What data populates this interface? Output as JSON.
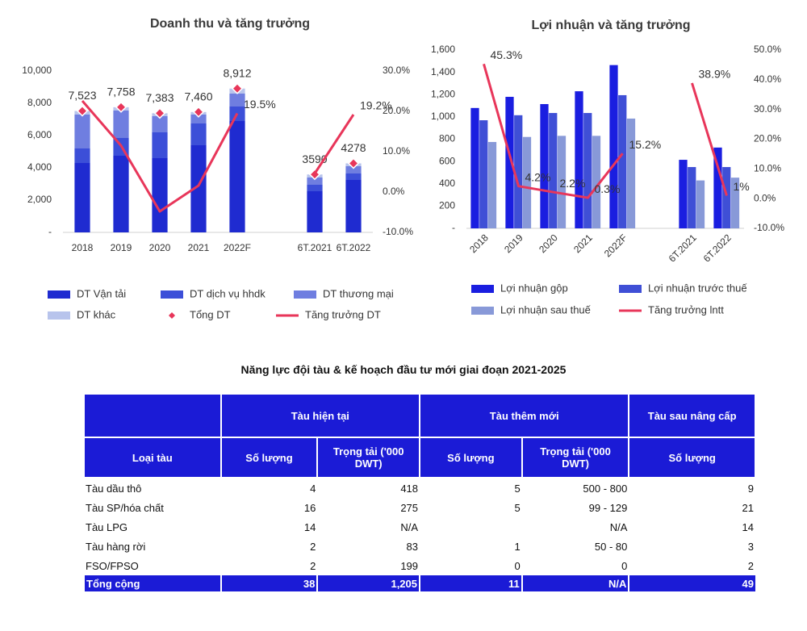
{
  "chart_data": [
    {
      "type": "bar",
      "stacked": true,
      "title": "Doanh thu và tăng trưởng",
      "categories": [
        "2018",
        "2019",
        "2020",
        "2021",
        "2022F",
        null,
        "6T.2021",
        "6T.2022"
      ],
      "ylim": [
        0,
        10000
      ],
      "yticks": [
        {
          "value": 0,
          "label": "-"
        },
        {
          "value": 2000,
          "label": "2,000"
        },
        {
          "value": 4000,
          "label": "4,000"
        },
        {
          "value": 6000,
          "label": "6,000"
        },
        {
          "value": 8000,
          "label": "8,000"
        },
        {
          "value": 10000,
          "label": "10,000"
        }
      ],
      "y2lim": [
        -10,
        30
      ],
      "y2ticks": [
        {
          "value": -10,
          "label": "-10.0%"
        },
        {
          "value": 0,
          "label": "0.0%"
        },
        {
          "value": 10,
          "label": "10.0%"
        },
        {
          "value": 20,
          "label": "20.0%"
        },
        {
          "value": 30,
          "label": "30.0%"
        }
      ],
      "series": [
        {
          "name": "DT Vận tải",
          "type": "bar",
          "color": "#1f2bd0",
          "values": [
            4300,
            4750,
            4600,
            5400,
            6900,
            null,
            2550,
            3250
          ]
        },
        {
          "name": "DT dịch vụ hhdk",
          "type": "bar",
          "color": "#3c4fd8",
          "values": [
            900,
            1100,
            1600,
            1350,
            900,
            null,
            400,
            400
          ]
        },
        {
          "name": "DT thương mại",
          "type": "bar",
          "color": "#6f7ee0",
          "values": [
            2100,
            1700,
            1000,
            550,
            800,
            null,
            450,
            450
          ]
        },
        {
          "name": "DT khác",
          "type": "bar",
          "color": "#b8c4ec",
          "values": [
            223,
            208,
            183,
            160,
            312,
            null,
            190,
            178
          ]
        },
        {
          "name": "Tổng DT",
          "type": "scatter",
          "color": "#e8365a",
          "values": [
            7523,
            7758,
            7383,
            7460,
            8912,
            null,
            3590,
            4278
          ],
          "value_labels": [
            "7,523",
            "7,758",
            "7,383",
            "7,460",
            "8,912",
            null,
            "3590",
            "4278"
          ]
        },
        {
          "name": "Tăng trưởng DT",
          "type": "line",
          "axis": "y2",
          "color": "#e8365a",
          "values": [
            22.6,
            11.5,
            -4.8,
            1.6,
            19.5,
            null,
            4.6,
            19.2
          ],
          "value_labels": [
            null,
            null,
            null,
            null,
            "19.5%",
            null,
            null,
            "19.2%"
          ]
        }
      ]
    },
    {
      "type": "bar",
      "stacked": false,
      "title": "Lợi nhuận và tăng trưởng",
      "categories": [
        "2018",
        "2019",
        "2020",
        "2021",
        "2022F",
        null,
        "6T.2021",
        "6T.2022"
      ],
      "ylim": [
        0,
        1600
      ],
      "yticks": [
        {
          "value": 0,
          "label": "-"
        },
        200,
        400,
        600,
        800,
        {
          "value": 1000,
          "label": "1,000"
        },
        {
          "value": 1200,
          "label": "1,200"
        },
        {
          "value": 1400,
          "label": "1,400"
        },
        {
          "value": 1600,
          "label": "1,600"
        }
      ],
      "y2lim": [
        -10,
        50
      ],
      "y2ticks": [
        {
          "value": -10,
          "label": "-10.0%"
        },
        {
          "value": 0,
          "label": "0.0%"
        },
        {
          "value": 10,
          "label": "10.0%"
        },
        {
          "value": 20,
          "label": "20.0%"
        },
        {
          "value": 30,
          "label": "30.0%"
        },
        {
          "value": 40,
          "label": "40.0%"
        },
        {
          "value": 50,
          "label": "50.0%"
        }
      ],
      "series": [
        {
          "name": "Lợi nhuận gộp",
          "type": "bar",
          "color": "#1a1ee0",
          "values": [
            1080,
            1180,
            1115,
            1230,
            1465,
            null,
            615,
            725
          ]
        },
        {
          "name": "Lợi nhuận trước thuế",
          "type": "bar",
          "color": "#3f4fd6",
          "values": [
            970,
            1015,
            1035,
            1035,
            1195,
            null,
            550,
            550
          ]
        },
        {
          "name": "Lợi nhuận sau thuế",
          "type": "bar",
          "color": "#8899d8",
          "values": [
            775,
            820,
            830,
            830,
            985,
            null,
            430,
            455
          ]
        },
        {
          "name": "Tăng trưởng lntt",
          "type": "line",
          "axis": "y2",
          "color": "#e8365a",
          "values": [
            45.3,
            4.2,
            2.2,
            0.3,
            15.2,
            null,
            38.9,
            1
          ],
          "value_labels": [
            "45.3%",
            "4.2%",
            "2.2%",
            "0.3%",
            "15.2%",
            null,
            "38.9%",
            "1%"
          ]
        }
      ]
    }
  ],
  "table": {
    "title": "Năng lực đội tàu & kế hoạch đầu tư mới giai đoạn 2021-2025",
    "groups": [
      "Tàu hiện tại",
      "Tàu thêm mới",
      "Tàu sau nâng cấp"
    ],
    "header": [
      "Loại tàu",
      "Số lượng",
      "Trọng tải ('000 DWT)",
      "Số lượng",
      "Trọng tải ('000 DWT)",
      "Số lượng"
    ],
    "rows": [
      [
        "Tàu dầu thô",
        "4",
        "418",
        "5",
        "500 - 800",
        "9"
      ],
      [
        "Tàu SP/hóa chất",
        "16",
        "275",
        "5",
        "99 - 129",
        "21"
      ],
      [
        "Tàu LPG",
        "14",
        "N/A",
        null,
        "N/A",
        "14"
      ],
      [
        "Tàu hàng rời",
        "2",
        "83",
        "1",
        "50 - 80",
        "3"
      ],
      [
        "FSO/FPSO",
        "2",
        "199",
        "0",
        "0",
        "2"
      ]
    ],
    "total": [
      "Tổng cộng",
      "38",
      "1,205",
      "11",
      "N/A",
      "49"
    ]
  }
}
